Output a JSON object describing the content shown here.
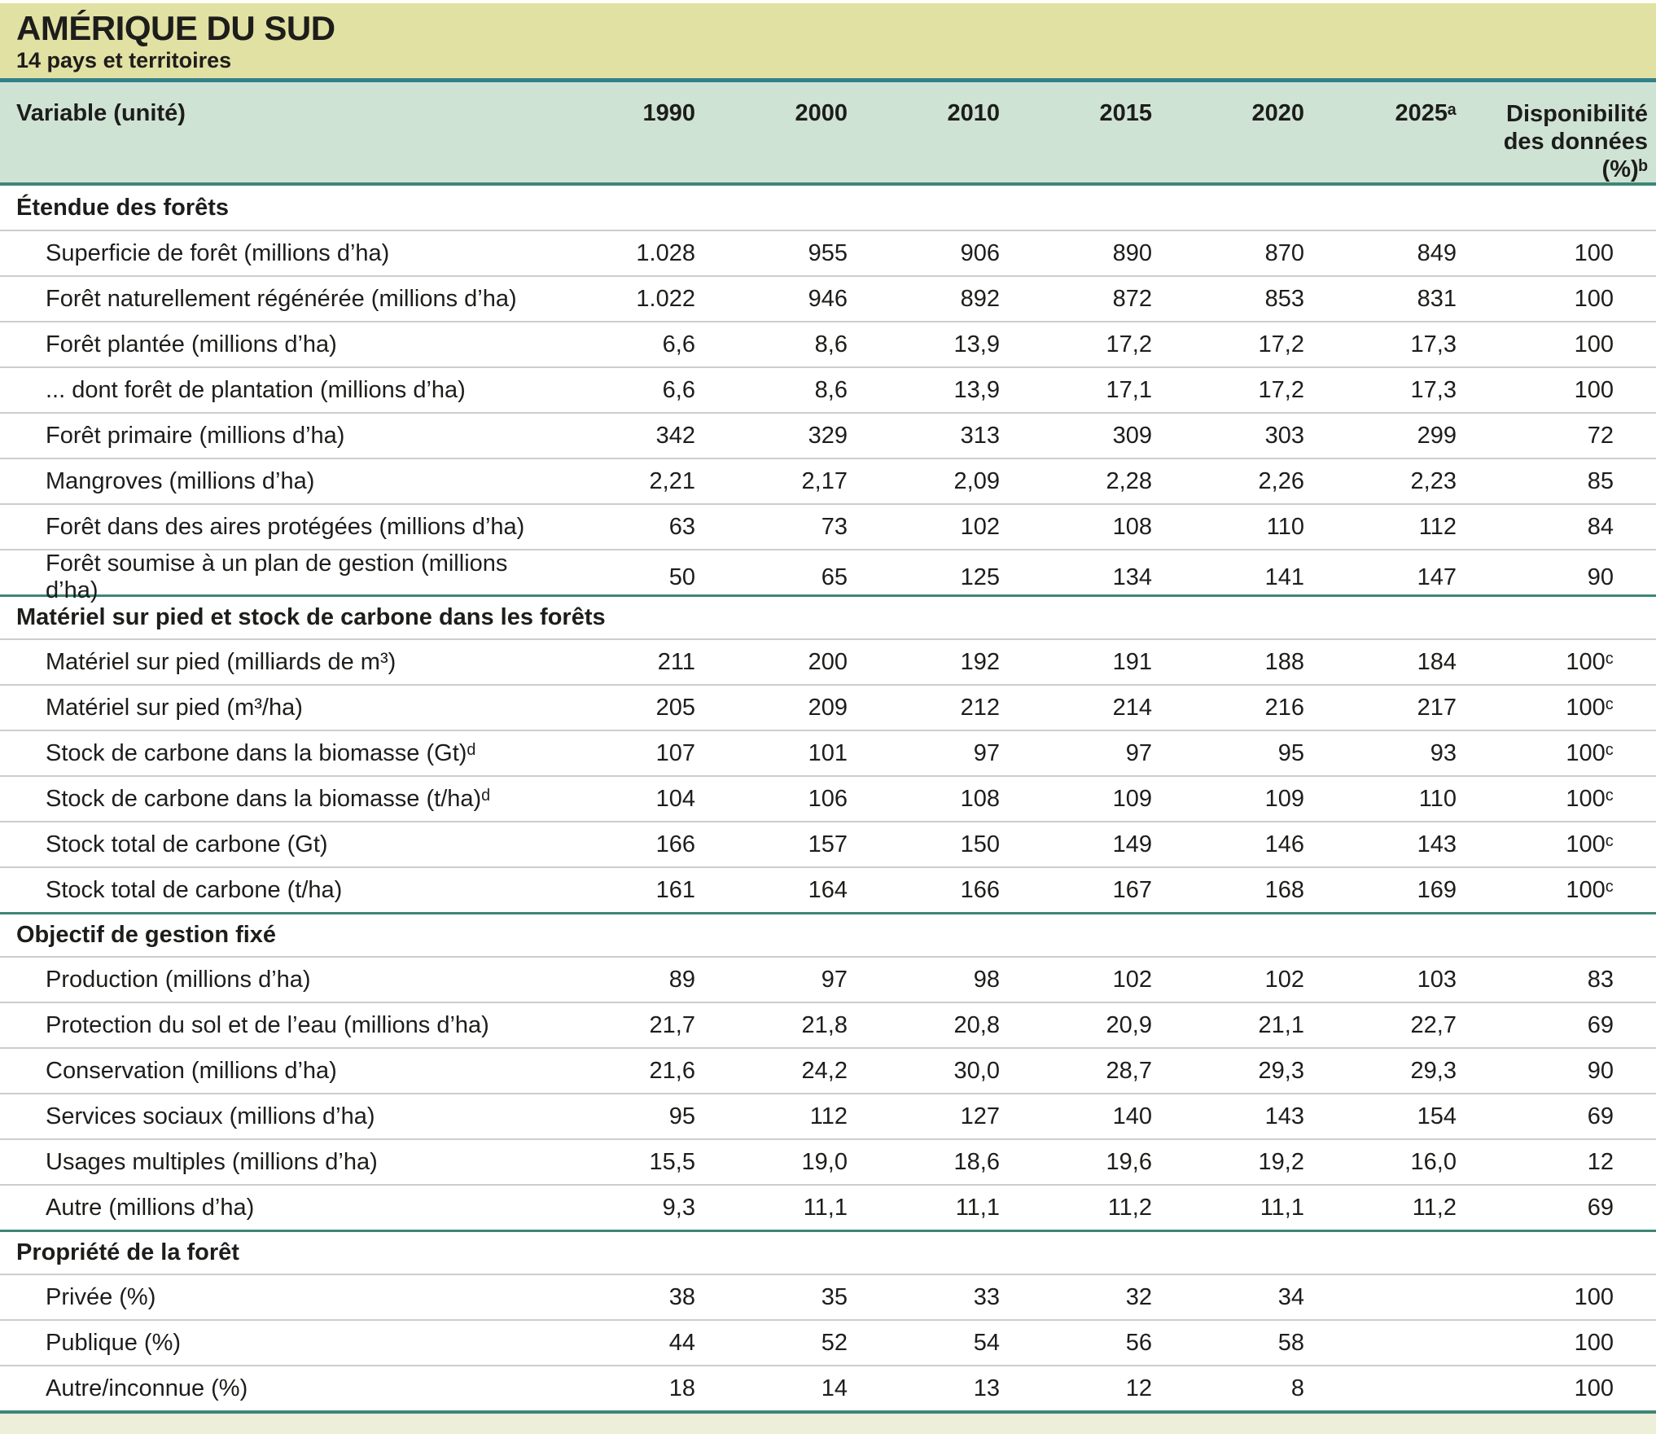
{
  "header": {
    "title": "AMÉRIQUE DU SUD",
    "subtitle": "14 pays et territoires"
  },
  "table": {
    "variable_header": "Variable (unité)",
    "year_columns": [
      "1990",
      "2000",
      "2010",
      "2015",
      "2020",
      "2025ᵃ"
    ],
    "availability_header": "Disponibilité\ndes données\n(%)ᵇ",
    "sections": [
      {
        "title": "Étendue des forêts",
        "rows": [
          {
            "label": "Superficie de forêt (millions d’ha)",
            "values": [
              "1.028",
              "955",
              "906",
              "890",
              "870",
              "849",
              "100"
            ]
          },
          {
            "label": "Forêt naturellement régénérée (millions d’ha)",
            "values": [
              "1.022",
              "946",
              "892",
              "872",
              "853",
              "831",
              "100"
            ]
          },
          {
            "label": "Forêt plantée (millions d’ha)",
            "values": [
              "6,6",
              "8,6",
              "13,9",
              "17,2",
              "17,2",
              "17,3",
              "100"
            ]
          },
          {
            "label": "... dont forêt de plantation (millions d’ha)",
            "values": [
              "6,6",
              "8,6",
              "13,9",
              "17,1",
              "17,2",
              "17,3",
              "100"
            ]
          },
          {
            "label": "Forêt primaire (millions d’ha)",
            "values": [
              "342",
              "329",
              "313",
              "309",
              "303",
              "299",
              "72"
            ]
          },
          {
            "label": "Mangroves (millions d’ha)",
            "values": [
              "2,21",
              "2,17",
              "2,09",
              "2,28",
              "2,26",
              "2,23",
              "85"
            ]
          },
          {
            "label": "Forêt dans des aires protégées (millions d’ha)",
            "values": [
              "63",
              "73",
              "102",
              "108",
              "110",
              "112",
              "84"
            ]
          },
          {
            "label": "Forêt soumise à un plan de gestion (millions d’ha)",
            "values": [
              "50",
              "65",
              "125",
              "134",
              "141",
              "147",
              "90"
            ]
          }
        ]
      },
      {
        "title": "Matériel sur pied et stock de carbone dans les forêts",
        "rows": [
          {
            "label": "Matériel sur pied (milliards de m³)",
            "values": [
              "211",
              "200",
              "192",
              "191",
              "188",
              "184",
              "100ᶜ"
            ]
          },
          {
            "label": "Matériel sur pied (m³/ha)",
            "values": [
              "205",
              "209",
              "212",
              "214",
              "216",
              "217",
              "100ᶜ"
            ]
          },
          {
            "label": "Stock de carbone dans la biomasse (Gt)ᵈ",
            "values": [
              "107",
              "101",
              "97",
              "97",
              "95",
              "93",
              "100ᶜ"
            ]
          },
          {
            "label": "Stock de carbone dans la biomasse (t/ha)ᵈ",
            "values": [
              "104",
              "106",
              "108",
              "109",
              "109",
              "110",
              "100ᶜ"
            ]
          },
          {
            "label": "Stock total de carbone (Gt)",
            "values": [
              "166",
              "157",
              "150",
              "149",
              "146",
              "143",
              "100ᶜ"
            ]
          },
          {
            "label": "Stock total de carbone (t/ha)",
            "values": [
              "161",
              "164",
              "166",
              "167",
              "168",
              "169",
              "100ᶜ"
            ]
          }
        ]
      },
      {
        "title": "Objectif de gestion fixé",
        "rows": [
          {
            "label": "Production (millions d’ha)",
            "values": [
              "89",
              "97",
              "98",
              "102",
              "102",
              "103",
              "83"
            ]
          },
          {
            "label": "Protection du sol et de l’eau (millions d’ha)",
            "values": [
              "21,7",
              "21,8",
              "20,8",
              "20,9",
              "21,1",
              "22,7",
              "69"
            ]
          },
          {
            "label": "Conservation (millions d’ha)",
            "values": [
              "21,6",
              "24,2",
              "30,0",
              "28,7",
              "29,3",
              "29,3",
              "90"
            ]
          },
          {
            "label": "Services sociaux (millions d’ha)",
            "values": [
              "95",
              "112",
              "127",
              "140",
              "143",
              "154",
              "69"
            ]
          },
          {
            "label": "Usages multiples (millions d’ha)",
            "values": [
              "15,5",
              "19,0",
              "18,6",
              "19,6",
              "19,2",
              "16,0",
              "12"
            ]
          },
          {
            "label": "Autre (millions d’ha)",
            "values": [
              "9,3",
              "11,1",
              "11,1",
              "11,2",
              "11,1",
              "11,2",
              "69"
            ]
          }
        ]
      },
      {
        "title": "Propriété de la forêt",
        "rows": [
          {
            "label": "Privée (%)",
            "values": [
              "38",
              "35",
              "33",
              "32",
              "34",
              "",
              "100"
            ]
          },
          {
            "label": "Publique (%)",
            "values": [
              "44",
              "52",
              "54",
              "56",
              "58",
              "",
              "100"
            ]
          },
          {
            "label": "Autre/inconnue (%)",
            "values": [
              "18",
              "14",
              "13",
              "12",
              "8",
              "",
              "100"
            ]
          }
        ]
      }
    ]
  },
  "colors": {
    "title_band": "#e2e1a4",
    "header_band": "#cfe3d4",
    "accent_top": "#34808a",
    "accent_div": "#3e8677",
    "bottom_band": "#edefd8",
    "row_line": "#cdcdcd",
    "text": "#1d1d1b"
  }
}
